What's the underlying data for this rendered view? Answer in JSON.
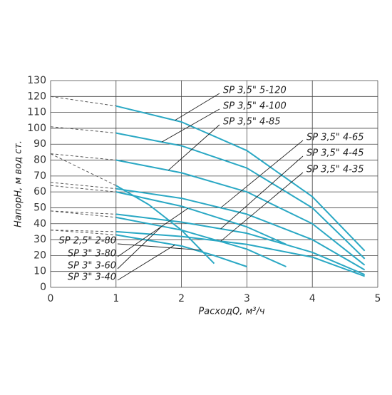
{
  "chart_data": {
    "type": "line",
    "x_label": "РасходQ, м³/ч",
    "y_label": "НапорН, м вод ст.",
    "xlim": [
      0,
      5
    ],
    "xticks": [
      0,
      1,
      2,
      3,
      4,
      5
    ],
    "ylim": [
      0,
      130
    ],
    "yticks": [
      0,
      10,
      20,
      30,
      40,
      50,
      60,
      70,
      80,
      90,
      100,
      110,
      120,
      130
    ],
    "grid": true,
    "color": "#2aa8c4",
    "series": [
      {
        "name": "SP 3,5\" 5-120",
        "x": [
          0,
          1,
          2,
          3,
          4,
          4.8
        ],
        "values": [
          120,
          114,
          104,
          86,
          57,
          23
        ]
      },
      {
        "name": "SP 3,5\" 4-100",
        "x": [
          0,
          1,
          2,
          3,
          4,
          4.8
        ],
        "values": [
          101,
          97,
          89,
          75,
          50,
          18
        ]
      },
      {
        "name": "SP 3,5\" 4-85",
        "x": [
          0,
          1,
          2,
          3,
          4,
          4.8
        ],
        "values": [
          84,
          80,
          72,
          60,
          40,
          14
        ]
      },
      {
        "name": "SP 3,5\" 4-65",
        "x": [
          0,
          1,
          2,
          3,
          4,
          4.8
        ],
        "values": [
          66,
          62,
          56,
          46,
          30,
          11
        ]
      },
      {
        "name": "SP 3,5\" 4-45",
        "x": [
          0,
          1,
          2,
          3,
          4,
          4.8
        ],
        "values": [
          48,
          46,
          41,
          34,
          22,
          8
        ]
      },
      {
        "name": "SP 3,5\" 4-35",
        "x": [
          0,
          1,
          2,
          3,
          4,
          4.8
        ],
        "values": [
          36,
          35,
          32,
          27,
          19,
          7
        ]
      },
      {
        "name": "SP 2,5\" 2-80",
        "x": [
          0,
          1,
          1.5,
          2,
          2.5
        ],
        "values": [
          84,
          64,
          52,
          36,
          15
        ]
      },
      {
        "name": "SP 3\" 3-80",
        "x": [
          0,
          1,
          2,
          3,
          3.6
        ],
        "values": [
          64,
          60,
          51,
          38,
          27
        ]
      },
      {
        "name": "SP 3\" 3-60",
        "x": [
          0,
          1,
          2,
          3,
          3.6
        ],
        "values": [
          48,
          44,
          36,
          24,
          13
        ]
      },
      {
        "name": "SP 3\" 3-40",
        "x": [
          0,
          1,
          2,
          2.5,
          3
        ],
        "values": [
          36,
          33,
          26,
          20,
          13
        ]
      }
    ]
  }
}
